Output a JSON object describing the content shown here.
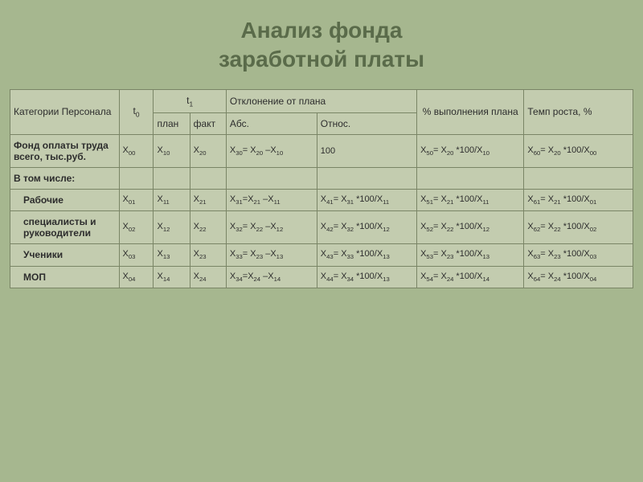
{
  "title_line1": "Анализ фонда",
  "title_line2": "заработной платы",
  "title_fontsize": "28px",
  "title_color": "#5a6b4a",
  "background_color": "#a6b78f",
  "table_bg": "#c3ccaf",
  "border_color": "#7a8566",
  "text_color": "#2d2d2d",
  "cell_fontsize": "11px",
  "header_fontsize": "12px",
  "table": {
    "type": "table",
    "columns": {
      "category": "Категории Персонала",
      "t0": "t",
      "t0_sub": "0",
      "t1": "t",
      "t1_sub": "1",
      "t1_plan": "план",
      "t1_fact": "факт",
      "deviation": "Отклонение от плана",
      "dev_abs": "Абс.",
      "dev_rel": "Относ.",
      "percent_plan": "% выполнения плана",
      "growth_rate": "Темп роста, %"
    },
    "rows": [
      {
        "label": "Фонд оплаты труда всего, тыс.руб.",
        "indent": "none",
        "t0": {
          "base": "X",
          "sub": "00"
        },
        "plan": {
          "base": "X",
          "sub": "10"
        },
        "fact": {
          "base": "X",
          "sub": "20"
        },
        "abs": [
          {
            "base": "X",
            "sub": "30"
          },
          "= ",
          {
            "base": "X",
            "sub": "20"
          },
          " –",
          {
            "base": "X",
            "sub": "10"
          }
        ],
        "rel": [
          {
            "text": "100"
          }
        ],
        "pct": [
          {
            "base": "X",
            "sub": "50"
          },
          "= ",
          {
            "base": "X",
            "sub": "20"
          },
          " *100/",
          {
            "base": "X",
            "sub": "10"
          }
        ],
        "temp": [
          {
            "base": "X",
            "sub": "60"
          },
          "= ",
          {
            "base": "X",
            "sub": "20"
          },
          " *100/",
          {
            "base": "X",
            "sub": "00"
          }
        ]
      },
      {
        "label": "В том числе:",
        "indent": "none",
        "blank": true
      },
      {
        "label": "Рабочие",
        "indent": "sub",
        "t0": {
          "base": "X",
          "sub": "01"
        },
        "plan": {
          "base": "X",
          "sub": "11"
        },
        "fact": {
          "base": "X",
          "sub": "21"
        },
        "abs": [
          {
            "base": "X",
            "sub": "31"
          },
          "=",
          {
            "base": "X",
            "sub": "21"
          },
          " –",
          {
            "base": "X",
            "sub": "11"
          }
        ],
        "rel": [
          {
            "base": "X",
            "sub": "41"
          },
          "= ",
          {
            "base": "X",
            "sub": "31"
          },
          " *100/",
          {
            "base": "X",
            "sub": "11"
          }
        ],
        "pct": [
          {
            "base": "X",
            "sub": "51"
          },
          "= ",
          {
            "base": "X",
            "sub": "21"
          },
          " *100/",
          {
            "base": "X",
            "sub": "11"
          }
        ],
        "temp": [
          {
            "base": "X",
            "sub": "61"
          },
          "= ",
          {
            "base": "X",
            "sub": "21"
          },
          " *100/",
          {
            "base": "X",
            "sub": "01"
          }
        ]
      },
      {
        "label": "специалисты и руководители",
        "indent": "sub",
        "t0": {
          "base": "X",
          "sub": "02"
        },
        "plan": {
          "base": "X",
          "sub": "12"
        },
        "fact": {
          "base": "X",
          "sub": "22"
        },
        "abs": [
          {
            "base": "X",
            "sub": "32"
          },
          "= ",
          {
            "base": "X",
            "sub": "22"
          },
          " –",
          {
            "base": "X",
            "sub": "12"
          }
        ],
        "rel": [
          {
            "base": "X",
            "sub": "42"
          },
          "= ",
          {
            "base": "X",
            "sub": "32"
          },
          " *100/",
          {
            "base": "X",
            "sub": "12"
          }
        ],
        "pct": [
          {
            "base": "X",
            "sub": "52"
          },
          "= ",
          {
            "base": "X",
            "sub": "22"
          },
          " *100/",
          {
            "base": "X",
            "sub": "12"
          }
        ],
        "temp": [
          {
            "base": "X",
            "sub": "62"
          },
          "= ",
          {
            "base": "X",
            "sub": "22"
          },
          " *100/",
          {
            "base": "X",
            "sub": "02"
          }
        ]
      },
      {
        "label": "Ученики",
        "indent": "sub",
        "t0": {
          "base": "X",
          "sub": "03"
        },
        "plan": {
          "base": "X",
          "sub": "13"
        },
        "fact": {
          "base": "X",
          "sub": "23"
        },
        "abs": [
          {
            "base": "X",
            "sub": "33"
          },
          "= ",
          {
            "base": "X",
            "sub": "23"
          },
          " –",
          {
            "base": "X",
            "sub": "13"
          }
        ],
        "rel": [
          {
            "base": "X",
            "sub": "43"
          },
          "= ",
          {
            "base": "X",
            "sub": "33"
          },
          " *100/",
          {
            "base": "X",
            "sub": "13"
          }
        ],
        "pct": [
          {
            "base": "X",
            "sub": "53"
          },
          "= ",
          {
            "base": "X",
            "sub": "23"
          },
          " *100/",
          {
            "base": "X",
            "sub": "13"
          }
        ],
        "temp": [
          {
            "base": "X",
            "sub": "63"
          },
          "= ",
          {
            "base": "X",
            "sub": "23"
          },
          " *100/",
          {
            "base": "X",
            "sub": "03"
          }
        ]
      },
      {
        "label": "МОП",
        "indent": "sub",
        "t0": {
          "base": "X",
          "sub": "04"
        },
        "plan": {
          "base": "X",
          "sub": "14"
        },
        "fact": {
          "base": "X",
          "sub": "24"
        },
        "abs": [
          {
            "base": "X",
            "sub": "34"
          },
          "=",
          {
            "base": "X",
            "sub": "24"
          },
          " –",
          {
            "base": "X",
            "sub": "14"
          }
        ],
        "rel": [
          {
            "base": "X",
            "sub": "44"
          },
          "= ",
          {
            "base": "X",
            "sub": "34"
          },
          " *100/",
          {
            "base": "X",
            "sub": "13"
          }
        ],
        "pct": [
          {
            "base": "X",
            "sub": "54"
          },
          "= ",
          {
            "base": "X",
            "sub": "24"
          },
          " *100/",
          {
            "base": "X",
            "sub": "14"
          }
        ],
        "temp": [
          {
            "base": "X",
            "sub": "64"
          },
          "= ",
          {
            "base": "X",
            "sub": "24"
          },
          " *100/",
          {
            "base": "X",
            "sub": "04"
          }
        ]
      }
    ]
  }
}
